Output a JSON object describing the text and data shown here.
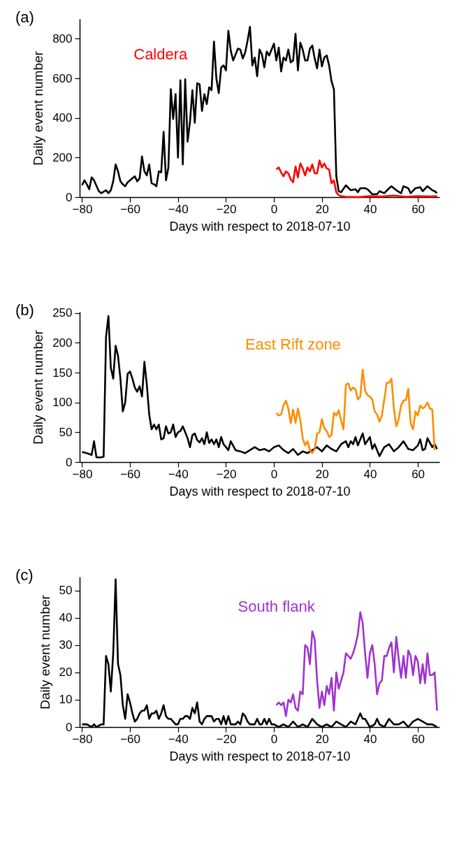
{
  "chart_data": [
    {
      "type": "line",
      "annotations": [
        "(a)"
      ],
      "xlabel": "Days with respect to 2018-07-10",
      "ylabel": "Daily event number",
      "xlim": [
        -81,
        69
      ],
      "xticks": [
        -80,
        -60,
        -40,
        -20,
        0,
        20,
        40,
        60
      ],
      "ylim": [
        0,
        900
      ],
      "yticks": [
        0,
        200,
        400,
        600,
        800
      ],
      "series": [
        {
          "color": "#000000",
          "x": [
            -80,
            -79,
            -78,
            -77,
            -76,
            -75,
            -73,
            -72,
            -70,
            -69,
            -68,
            -67,
            -66,
            -65,
            -64,
            -63,
            -62,
            -61,
            -59,
            -58,
            -57,
            -56,
            -55,
            -54,
            -53,
            -52,
            -51,
            -50,
            -49,
            -48,
            -47,
            -46,
            -45,
            -44,
            -43,
            -42,
            -41,
            -40,
            -39,
            -38,
            -37,
            -36,
            -35,
            -34,
            -33,
            -32,
            -31,
            -30,
            -29,
            -28,
            -27,
            -26,
            -25,
            -24,
            -23,
            -22,
            -21,
            -20,
            -19,
            -18,
            -17,
            -16,
            -15,
            -14,
            -13,
            -12,
            -11,
            -10,
            -9,
            -8,
            -7,
            -6,
            -5,
            -4,
            -3,
            -2,
            -1,
            0,
            1,
            2,
            3,
            4,
            5,
            6,
            7,
            8,
            9,
            10,
            11,
            12,
            13,
            14,
            15,
            16,
            17,
            18,
            19,
            20,
            21,
            22,
            23,
            24,
            25,
            26,
            27,
            28,
            30,
            32,
            34,
            35,
            36,
            38,
            39,
            41,
            43,
            44,
            46,
            48,
            49,
            51,
            53,
            54,
            56,
            57,
            59,
            61,
            62,
            64,
            66,
            67,
            68
          ],
          "values": [
            60,
            85,
            65,
            40,
            100,
            85,
            30,
            20,
            35,
            20,
            35,
            80,
            165,
            130,
            80,
            65,
            55,
            75,
            95,
            105,
            80,
            95,
            205,
            130,
            110,
            165,
            70,
            65,
            55,
            130,
            125,
            330,
            85,
            150,
            545,
            395,
            520,
            200,
            590,
            165,
            595,
            280,
            380,
            540,
            375,
            575,
            570,
            435,
            520,
            470,
            555,
            540,
            785,
            600,
            525,
            655,
            665,
            640,
            840,
            740,
            690,
            720,
            750,
            745,
            700,
            730,
            790,
            860,
            665,
            705,
            610,
            745,
            720,
            655,
            735,
            715,
            745,
            775,
            690,
            755,
            635,
            705,
            690,
            745,
            680,
            690,
            825,
            640,
            780,
            745,
            690,
            690,
            750,
            765,
            700,
            650,
            745,
            660,
            705,
            715,
            665,
            585,
            545,
            105,
            30,
            25,
            60,
            35,
            40,
            25,
            45,
            45,
            40,
            15,
            15,
            30,
            20,
            45,
            55,
            35,
            20,
            55,
            45,
            20,
            45,
            50,
            30,
            55,
            35,
            30,
            20
          ]
        },
        {
          "name": "Caldera",
          "color": "#ff0000",
          "x": [
            1,
            2,
            3,
            4,
            5,
            6,
            7,
            8,
            9,
            10,
            11,
            12,
            13,
            14,
            15,
            16,
            17,
            18,
            19,
            20,
            21,
            22,
            23,
            24,
            25,
            26,
            27,
            28,
            30,
            35,
            40,
            45,
            50,
            55,
            60,
            65,
            68
          ],
          "values": [
            140,
            150,
            125,
            105,
            130,
            120,
            90,
            75,
            155,
            100,
            170,
            145,
            110,
            150,
            130,
            165,
            120,
            120,
            185,
            150,
            170,
            145,
            140,
            70,
            85,
            25,
            10,
            5,
            2,
            0,
            5,
            3,
            8,
            2,
            5,
            3,
            5
          ]
        }
      ]
    },
    {
      "type": "line",
      "annotations": [
        "(b)"
      ],
      "xlabel": "Days with respect to 2018-07-10",
      "ylabel": "Daily event number",
      "xlim": [
        -81,
        69
      ],
      "xticks": [
        -80,
        -60,
        -40,
        -20,
        0,
        20,
        40,
        60
      ],
      "ylim": [
        0,
        252
      ],
      "yticks": [
        0,
        50,
        100,
        150,
        200,
        250
      ],
      "series": [
        {
          "color": "#000000",
          "x": [
            -80,
            -78,
            -76,
            -75,
            -74,
            -72,
            -71,
            -70,
            -69,
            -68,
            -67,
            -66,
            -65,
            -64,
            -63,
            -62,
            -61,
            -60,
            -59,
            -58,
            -57,
            -56,
            -55,
            -54,
            -53,
            -52,
            -51,
            -50,
            -49,
            -48,
            -47,
            -46,
            -45,
            -44,
            -43,
            -42,
            -41,
            -40,
            -39,
            -38,
            -37,
            -36,
            -35,
            -34,
            -33,
            -32,
            -31,
            -30,
            -29,
            -28,
            -27,
            -26,
            -25,
            -24,
            -23,
            -22,
            -21,
            -20,
            -19,
            -18,
            -16,
            -14,
            -12,
            -10,
            -8,
            -6,
            -4,
            -2,
            0,
            2,
            4,
            6,
            8,
            10,
            12,
            14,
            16,
            18,
            20,
            22,
            24,
            26,
            28,
            30,
            31,
            32,
            33,
            34,
            35,
            37,
            38,
            40,
            41,
            42,
            44,
            46,
            48,
            50,
            52,
            54,
            56,
            58,
            60,
            61,
            62,
            63,
            64,
            66,
            67,
            68
          ],
          "values": [
            17,
            15,
            12,
            35,
            8,
            8,
            9,
            210,
            245,
            158,
            140,
            195,
            178,
            140,
            85,
            100,
            148,
            152,
            140,
            125,
            118,
            127,
            110,
            168,
            130,
            80,
            55,
            63,
            55,
            63,
            38,
            40,
            60,
            48,
            50,
            63,
            42,
            50,
            52,
            60,
            50,
            40,
            25,
            45,
            48,
            37,
            33,
            40,
            30,
            50,
            32,
            38,
            30,
            38,
            25,
            42,
            30,
            25,
            20,
            35,
            20,
            18,
            15,
            20,
            25,
            20,
            22,
            18,
            25,
            28,
            20,
            15,
            22,
            12,
            18,
            15,
            20,
            25,
            18,
            28,
            22,
            18,
            30,
            35,
            25,
            35,
            30,
            42,
            28,
            48,
            30,
            42,
            22,
            30,
            10,
            25,
            30,
            18,
            25,
            35,
            22,
            20,
            28,
            38,
            20,
            22,
            40,
            25,
            30,
            22
          ]
        },
        {
          "name": "East Rift zone",
          "color": "#ff8c00",
          "x": [
            1,
            2,
            3,
            4,
            5,
            6,
            7,
            8,
            9,
            10,
            11,
            12,
            13,
            14,
            15,
            16,
            17,
            18,
            19,
            20,
            21,
            22,
            23,
            24,
            25,
            26,
            27,
            28,
            29,
            30,
            31,
            32,
            33,
            34,
            35,
            36,
            37,
            38,
            39,
            40,
            41,
            42,
            43,
            44,
            45,
            46,
            47,
            48,
            49,
            50,
            51,
            52,
            53,
            54,
            55,
            56,
            57,
            58,
            59,
            60,
            61,
            62,
            63,
            64,
            65,
            66,
            67
          ],
          "values": [
            82,
            78,
            80,
            95,
            103,
            90,
            65,
            88,
            66,
            90,
            70,
            40,
            28,
            35,
            20,
            15,
            22,
            48,
            50,
            72,
            57,
            52,
            42,
            45,
            83,
            78,
            87,
            70,
            55,
            130,
            132,
            120,
            125,
            122,
            105,
            110,
            155,
            120,
            112,
            110,
            105,
            85,
            80,
            68,
            78,
            105,
            133,
            133,
            140,
            90,
            60,
            72,
            95,
            103,
            104,
            123,
            65,
            55,
            85,
            78,
            95,
            90,
            93,
            100,
            90,
            88,
            20
          ]
        }
      ]
    },
    {
      "type": "line",
      "annotations": [
        "(c)"
      ],
      "xlabel": "Days with respect to 2018-07-10",
      "ylabel": "Daily event number",
      "xlim": [
        -81,
        69
      ],
      "xticks": [
        -80,
        -60,
        -40,
        -20,
        0,
        20,
        40,
        60
      ],
      "ylim": [
        0,
        55
      ],
      "yticks": [
        0,
        10,
        20,
        30,
        40,
        50
      ],
      "series": [
        {
          "color": "#000000",
          "x": [
            -80,
            -78,
            -76,
            -75,
            -74,
            -72,
            -71,
            -70,
            -69,
            -68,
            -67,
            -66,
            -65,
            -64,
            -63,
            -62,
            -61,
            -60,
            -59,
            -58,
            -57,
            -56,
            -55,
            -54,
            -53,
            -52,
            -51,
            -50,
            -49,
            -48,
            -47,
            -46,
            -45,
            -44,
            -43,
            -42,
            -41,
            -40,
            -39,
            -38,
            -37,
            -36,
            -35,
            -34,
            -33,
            -32,
            -31,
            -30,
            -29,
            -28,
            -27,
            -26,
            -25,
            -24,
            -23,
            -22,
            -21,
            -20,
            -19,
            -18,
            -17,
            -16,
            -15,
            -14,
            -13,
            -12,
            -11,
            -10,
            -9,
            -8,
            -7,
            -6,
            -5,
            -4,
            -3,
            -2,
            -1,
            0,
            2,
            4,
            6,
            8,
            10,
            12,
            14,
            16,
            18,
            20,
            22,
            24,
            26,
            28,
            30,
            32,
            34,
            36,
            37,
            38,
            40,
            42,
            43,
            44,
            46,
            48,
            50,
            52,
            54,
            56,
            58,
            60,
            62,
            64,
            66,
            68
          ],
          "values": [
            1,
            1,
            0,
            1,
            0,
            1,
            1,
            26,
            23,
            13,
            27,
            54,
            23,
            19,
            8,
            3,
            12,
            9,
            5,
            2,
            3,
            5,
            6,
            6,
            8,
            3,
            5,
            5,
            6,
            3,
            5,
            8,
            4,
            3,
            3,
            2,
            1,
            1,
            3,
            3,
            4,
            4,
            3,
            7,
            5,
            9,
            2,
            1,
            3,
            4,
            4,
            4,
            2,
            3,
            3,
            1,
            4,
            1,
            4,
            1,
            1,
            1,
            2,
            1,
            5,
            4,
            2,
            1,
            1,
            1,
            3,
            1,
            1,
            3,
            1,
            3,
            1,
            1,
            0,
            1,
            0,
            2,
            0,
            1,
            0,
            3,
            1,
            0,
            1,
            0,
            2,
            1,
            0,
            2,
            1,
            5,
            3,
            3,
            0,
            1,
            3,
            1,
            0,
            3,
            1,
            1,
            2,
            0,
            2,
            3,
            2,
            1,
            1,
            0
          ]
        },
        {
          "name": "South flank",
          "color": "#a033d0",
          "x": [
            1,
            2,
            3,
            4,
            5,
            6,
            7,
            8,
            9,
            10,
            11,
            12,
            13,
            14,
            15,
            16,
            17,
            18,
            19,
            20,
            21,
            22,
            23,
            24,
            25,
            26,
            27,
            28,
            29,
            30,
            31,
            32,
            33,
            34,
            35,
            36,
            37,
            38,
            39,
            40,
            41,
            42,
            43,
            44,
            45,
            46,
            47,
            48,
            49,
            50,
            51,
            52,
            53,
            54,
            55,
            56,
            57,
            58,
            59,
            60,
            61,
            62,
            63,
            64,
            65,
            66,
            67,
            68
          ],
          "values": [
            8,
            9,
            8,
            9,
            4,
            10,
            9,
            12,
            7,
            6,
            13,
            12,
            30,
            29,
            23,
            35,
            32,
            17,
            7,
            13,
            8,
            15,
            12,
            18,
            6,
            20,
            14,
            17,
            20,
            27,
            26,
            25,
            27,
            30,
            34,
            42,
            38,
            27,
            18,
            27,
            30,
            23,
            12,
            16,
            17,
            26,
            26,
            29,
            31,
            20,
            33,
            25,
            18,
            26,
            18,
            28,
            26,
            19,
            26,
            24,
            16,
            23,
            16,
            27,
            19,
            19,
            20,
            6
          ]
        }
      ]
    }
  ]
}
